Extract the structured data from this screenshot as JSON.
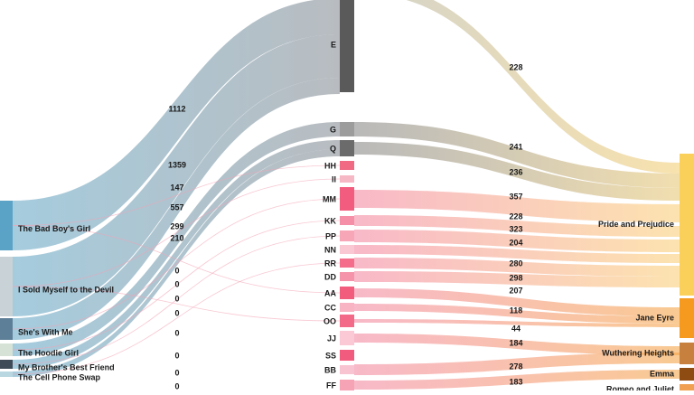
{
  "chart_data": {
    "type": "sankey",
    "left_nodes": [
      {
        "id": "bbg",
        "label": "The Bad Boy's Girl",
        "color": "#5ba3c6"
      },
      {
        "id": "ism",
        "label": "I Sold Myself to the Devil",
        "color": "#c9d2d6"
      },
      {
        "id": "swm",
        "label": "She's With Me",
        "color": "#5e7f98"
      },
      {
        "id": "thg",
        "label": "The Hoodie Girl",
        "color": "#d6e2d6"
      },
      {
        "id": "mbf",
        "label": "My Brother's Best Friend",
        "color": "#3f4b57"
      },
      {
        "id": "cps",
        "label": "The Cell Phone Swap",
        "color": "#b9d7e0"
      }
    ],
    "middle_nodes": [
      {
        "id": "E",
        "label": "E",
        "color": "#5a5a5a"
      },
      {
        "id": "G",
        "label": "G",
        "color": "#9c9c9c"
      },
      {
        "id": "Q",
        "label": "Q",
        "color": "#6b6b6b"
      },
      {
        "id": "HH",
        "label": "HH",
        "color": "#f06a84"
      },
      {
        "id": "II",
        "label": "II",
        "color": "#f7b8c6"
      },
      {
        "id": "MM",
        "label": "MM",
        "color": "#f25c7e"
      },
      {
        "id": "KK",
        "label": "KK",
        "color": "#f58fa7"
      },
      {
        "id": "PP",
        "label": "PP",
        "color": "#f7a6b8"
      },
      {
        "id": "NN",
        "label": "NN",
        "color": "#f9c8d3"
      },
      {
        "id": "RR",
        "label": "RR",
        "color": "#f46d8b"
      },
      {
        "id": "DD",
        "label": "DD",
        "color": "#f493aa"
      },
      {
        "id": "AA",
        "label": "AA",
        "color": "#f25d7e"
      },
      {
        "id": "CC",
        "label": "CC",
        "color": "#f8b4c3"
      },
      {
        "id": "OO",
        "label": "OO",
        "color": "#f36a89"
      },
      {
        "id": "JJ",
        "label": "JJ",
        "color": "#fac9d5"
      },
      {
        "id": "SS",
        "label": "SS",
        "color": "#f15b7d"
      },
      {
        "id": "BB",
        "label": "BB",
        "color": "#f9c4d1"
      },
      {
        "id": "FF",
        "label": "FF",
        "color": "#f7a3b6"
      }
    ],
    "right_nodes": [
      {
        "id": "PNP",
        "label": "Pride and Prejudice",
        "color": "#fbd05a"
      },
      {
        "id": "JE",
        "label": "Jane Eyre",
        "color": "#f59a1e"
      },
      {
        "id": "WH",
        "label": "Wuthering Heights",
        "color": "#c8803f"
      },
      {
        "id": "EM",
        "label": "Emma",
        "color": "#8f4c12"
      },
      {
        "id": "RJ",
        "label": "Romeo and Juliet",
        "color": "#f0a050"
      }
    ],
    "left_links": [
      {
        "source": "bbg",
        "target": "E",
        "value": 1112
      },
      {
        "source": "ism",
        "target": "E",
        "value": 1359
      },
      {
        "source": "swm",
        "target": "E",
        "value": 147
      },
      {
        "source": "thg",
        "target": "G",
        "value": 557
      },
      {
        "source": "mbf",
        "target": "Q",
        "value": 299
      },
      {
        "source": "cps",
        "target": "Q",
        "value": 210
      },
      {
        "source": "bbg",
        "target": "HH",
        "value": 0
      },
      {
        "source": "ism",
        "target": "II",
        "value": 0
      },
      {
        "source": "swm",
        "target": "MM",
        "value": 0
      },
      {
        "source": "thg",
        "target": "KK",
        "value": 0
      },
      {
        "source": "mbf",
        "target": "PP",
        "value": 0
      },
      {
        "source": "cps",
        "target": "RR",
        "value": 0
      },
      {
        "source": "bbg",
        "target": "AA",
        "value": 0
      },
      {
        "source": "ism",
        "target": "OO",
        "value": 0
      }
    ],
    "right_links": [
      {
        "source": "E",
        "target": "PNP",
        "value": 228
      },
      {
        "source": "G",
        "target": "PNP",
        "value": 241
      },
      {
        "source": "Q",
        "target": "PNP",
        "value": 236
      },
      {
        "source": "MM",
        "target": "PNP",
        "value": 357
      },
      {
        "source": "KK",
        "target": "PNP",
        "value": 228
      },
      {
        "source": "PP",
        "target": "PNP",
        "value": 323
      },
      {
        "source": "NN",
        "target": "PNP",
        "value": 204
      },
      {
        "source": "RR",
        "target": "PNP",
        "value": 280
      },
      {
        "source": "DD",
        "target": "PNP",
        "value": 298
      },
      {
        "source": "AA",
        "target": "JE",
        "value": 207
      },
      {
        "source": "CC",
        "target": "JE",
        "value": 118
      },
      {
        "source": "OO",
        "target": "JE",
        "value": 44
      },
      {
        "source": "JJ",
        "target": "WH",
        "value": 184
      },
      {
        "source": "BB",
        "target": "WH",
        "value": 278
      },
      {
        "source": "FF",
        "target": "EM",
        "value": 183
      }
    ]
  }
}
